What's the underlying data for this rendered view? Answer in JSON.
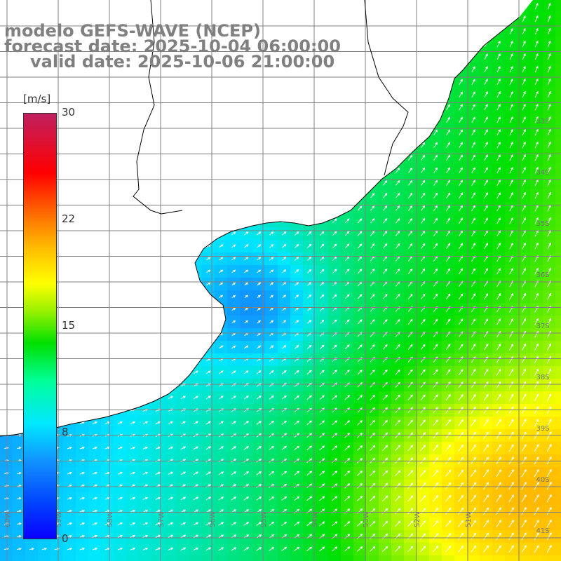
{
  "title": {
    "line1": "modelo GEFS-WAVE (NCEP)",
    "line2": "forecast date: 2025-10-04 06:00:00",
    "line3": "valid date: 2025-10-06 21:00:00"
  },
  "colorbar": {
    "unit": "[m/s]",
    "min": 0,
    "max": 30,
    "ticks": [
      "0",
      "8",
      "15",
      "22",
      "30"
    ],
    "colors": [
      "#0a00ff",
      "#1190ff",
      "#00e8ff",
      "#00e000",
      "#ffff00",
      "#ff7000",
      "#ff0000",
      "#c02060"
    ]
  },
  "map": {
    "lat_labels": [
      "33S",
      "34S",
      "35S",
      "36S",
      "37S",
      "38S",
      "39S",
      "40S",
      "41S"
    ],
    "lon_labels": [
      "60W",
      "59W",
      "58W",
      "57W",
      "56W",
      "55W",
      "54W",
      "53W",
      "52W",
      "51W"
    ],
    "land_color": "#ffffff",
    "grid_color": "#808080",
    "arrow_color": "#ffffff"
  }
}
